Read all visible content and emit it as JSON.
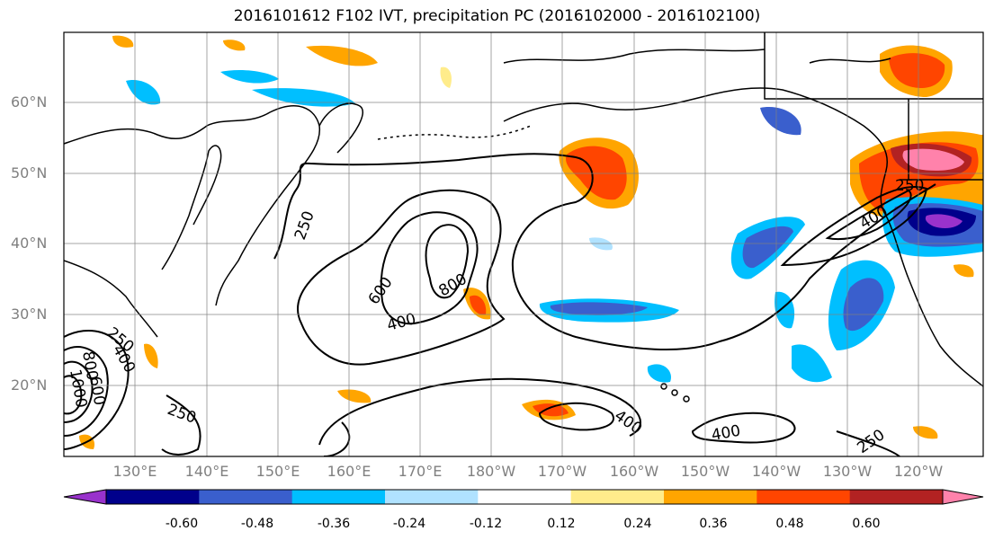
{
  "title": "2016101612 F102 IVT, precipitation PC (2016102000 - 2016102100)",
  "axes": {
    "lat_labels": [
      "60°N",
      "50°N",
      "40°N",
      "30°N",
      "20°N"
    ],
    "lon_labels": [
      "130°E",
      "140°E",
      "150°E",
      "160°E",
      "170°E",
      "180°W",
      "170°W",
      "160°W",
      "150°W",
      "140°W",
      "130°W",
      "120°W"
    ],
    "grid": true
  },
  "contour_labels": [
    {
      "text": "250"
    },
    {
      "text": "600"
    },
    {
      "text": "800"
    },
    {
      "text": "400"
    },
    {
      "text": "400"
    },
    {
      "text": "400"
    },
    {
      "text": "250"
    },
    {
      "text": "250"
    },
    {
      "text": "400"
    },
    {
      "text": "250"
    },
    {
      "text": "400"
    },
    {
      "text": "250"
    },
    {
      "text": "600"
    },
    {
      "text": "800"
    },
    {
      "text": "1000"
    }
  ],
  "colorbar": {
    "colors": [
      "#9932cc",
      "#00008b",
      "#3a5fcd",
      "#00bfff",
      "#b0e2ff",
      "#ffffff",
      "#ffec8b",
      "#ffa500",
      "#ff4500",
      "#b22222",
      "#ff82ab"
    ],
    "tick_labels": [
      "-0.60",
      "-0.48",
      "-0.36",
      "-0.24",
      "-0.12",
      "0.12",
      "0.24",
      "0.36",
      "0.48",
      "0.60"
    ]
  }
}
